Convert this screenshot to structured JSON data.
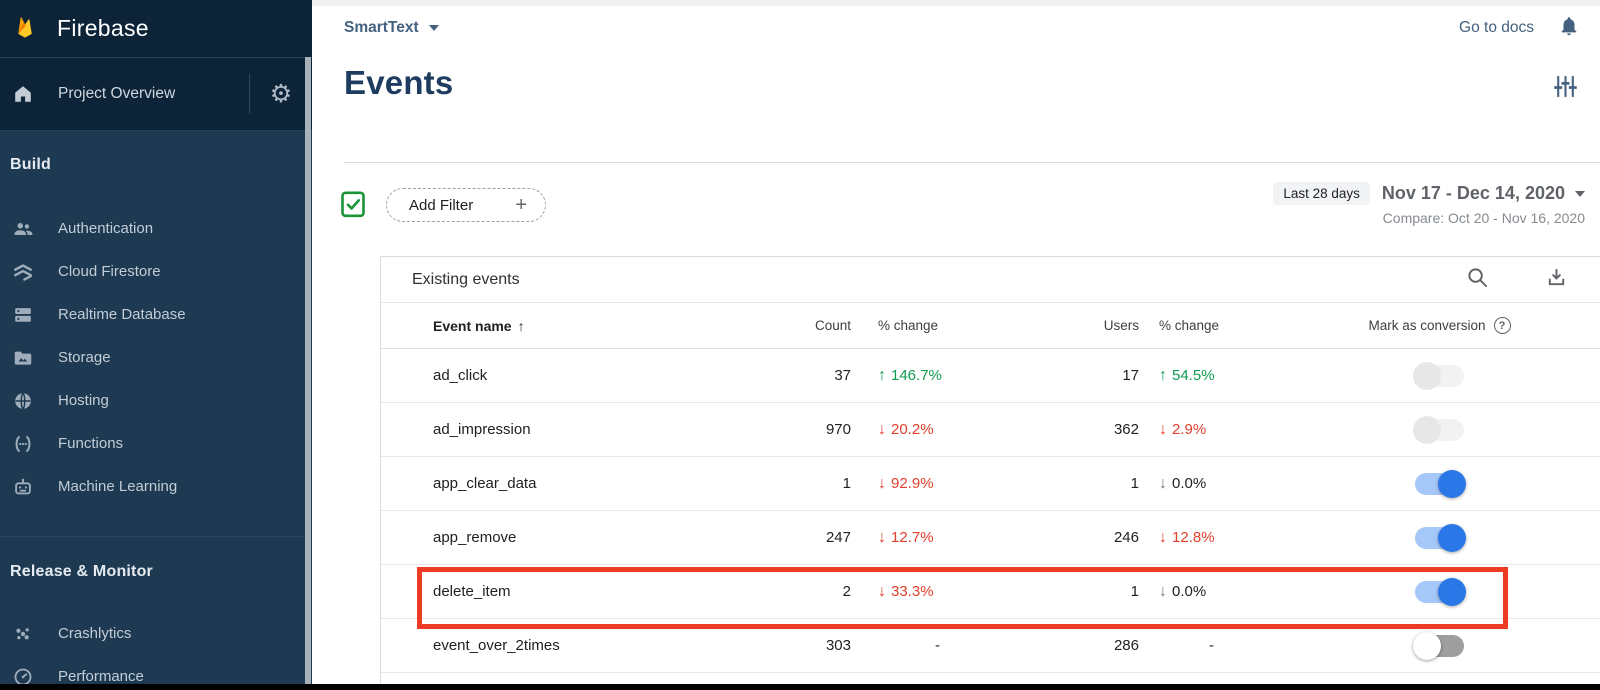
{
  "sidebar": {
    "brand": "Firebase",
    "project_overview": "Project Overview",
    "sections": [
      {
        "label": "Build",
        "items": [
          "Authentication",
          "Cloud Firestore",
          "Realtime Database",
          "Storage",
          "Hosting",
          "Functions",
          "Machine Learning"
        ]
      },
      {
        "label": "Release & Monitor",
        "items": [
          "Crashlytics",
          "Performance"
        ]
      }
    ]
  },
  "topbar": {
    "project_name": "SmartText",
    "go_to_docs": "Go to docs"
  },
  "page": {
    "title": "Events"
  },
  "filters": {
    "add_filter": "Add Filter",
    "plus_glyph": "+",
    "range_chip": "Last 28 days",
    "date_range": "Nov 17 - Dec 14, 2020",
    "compare": "Compare: Oct 20 - Nov 16, 2020"
  },
  "table": {
    "title": "Existing events",
    "columns": {
      "event_name": "Event name",
      "sort_glyph": "↑",
      "count": "Count",
      "pct_change": "% change",
      "users": "Users",
      "pct_change2": "% change",
      "mark_as_conversion": "Mark as conversion",
      "help_glyph": "?"
    },
    "rows": [
      {
        "name": "ad_click",
        "count": "37",
        "count_change": {
          "dir": "up",
          "style": "green",
          "value": "146.7%"
        },
        "users": "17",
        "users_change": {
          "dir": "up",
          "style": "green",
          "value": "54.5%"
        },
        "toggle": "disabled-off",
        "highlighted": false
      },
      {
        "name": "ad_impression",
        "count": "970",
        "count_change": {
          "dir": "down",
          "style": "red",
          "value": "20.2%"
        },
        "users": "362",
        "users_change": {
          "dir": "down",
          "style": "red",
          "value": "2.9%"
        },
        "toggle": "disabled-off",
        "highlighted": false
      },
      {
        "name": "app_clear_data",
        "count": "1",
        "count_change": {
          "dir": "down",
          "style": "red",
          "value": "92.9%"
        },
        "users": "1",
        "users_change": {
          "dir": "down",
          "style": "zero",
          "value": "0.0%"
        },
        "toggle": "on",
        "highlighted": false
      },
      {
        "name": "app_remove",
        "count": "247",
        "count_change": {
          "dir": "down",
          "style": "red",
          "value": "12.7%"
        },
        "users": "246",
        "users_change": {
          "dir": "down",
          "style": "red",
          "value": "12.8%"
        },
        "toggle": "on",
        "highlighted": false
      },
      {
        "name": "delete_item",
        "count": "2",
        "count_change": {
          "dir": "down",
          "style": "red",
          "value": "33.3%"
        },
        "users": "1",
        "users_change": {
          "dir": "down",
          "style": "zero",
          "value": "0.0%"
        },
        "toggle": "on",
        "highlighted": true
      },
      {
        "name": "event_over_2times",
        "count": "303",
        "count_change": {
          "dir": null,
          "style": "dash",
          "value": "-"
        },
        "users": "286",
        "users_change": {
          "dir": null,
          "style": "dash",
          "value": "-"
        },
        "toggle": "off",
        "highlighted": false
      }
    ]
  },
  "colors": {
    "accent_green": "#0f9d4f",
    "accent_red": "#e0402c",
    "toggle_on_blue": "#2a77e8",
    "toggle_track_blue": "#a5c8f8",
    "highlight_red": "#ee3b23",
    "sidebar_dark": "#0d2438",
    "sidebar_body": "#1d3a52"
  }
}
